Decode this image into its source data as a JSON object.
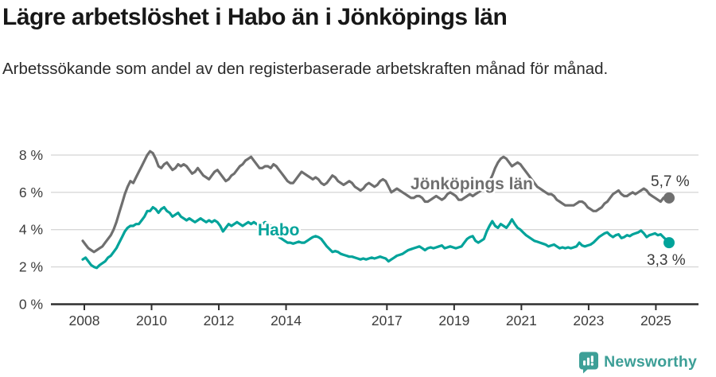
{
  "header": {
    "title": "Lägre arbetslöshet i Habo än i Jönköpings län",
    "subtitle": "Arbetssökande som andel av den registerbaserade arbetskraften månad för månad."
  },
  "chart_data": {
    "type": "line",
    "title": "Lägre arbetslöshet i Habo än i Jönköpings län",
    "subtitle": "Arbetssökande som andel av den registerbaserade arbetskraften månad för månad.",
    "frequency": "monthly",
    "x_range": [
      "2008-01",
      "2025-06"
    ],
    "y_unit": "%",
    "ylim": [
      0,
      8.6
    ],
    "grid": "horizontal",
    "legend": "inline-labels",
    "y_ticks": [
      "0 %",
      "2 %",
      "4 %",
      "6 %",
      "8 %"
    ],
    "x_ticks": [
      "2008",
      "2010",
      "2012",
      "2014",
      "2017",
      "2019",
      "2021",
      "2023",
      "2025"
    ],
    "series": [
      {
        "name": "Jönköpings län",
        "color": "#6f6f6f",
        "end_label": "5,7 %",
        "end_value": 5.7,
        "values": [
          3.4,
          3.2,
          3.0,
          2.9,
          2.8,
          2.9,
          3.0,
          3.1,
          3.3,
          3.5,
          3.7,
          4.0,
          4.4,
          4.9,
          5.4,
          5.9,
          6.3,
          6.6,
          6.5,
          6.8,
          7.1,
          7.4,
          7.7,
          8.0,
          8.2,
          8.1,
          7.8,
          7.4,
          7.3,
          7.5,
          7.6,
          7.4,
          7.2,
          7.3,
          7.5,
          7.4,
          7.5,
          7.4,
          7.2,
          7.0,
          7.1,
          7.3,
          7.1,
          6.9,
          6.8,
          6.7,
          6.9,
          7.1,
          7.2,
          7.0,
          6.8,
          6.6,
          6.7,
          6.9,
          7.0,
          7.2,
          7.4,
          7.5,
          7.7,
          7.8,
          7.9,
          7.7,
          7.5,
          7.3,
          7.3,
          7.4,
          7.4,
          7.3,
          7.5,
          7.4,
          7.2,
          7.0,
          6.8,
          6.6,
          6.5,
          6.5,
          6.7,
          6.9,
          7.1,
          7.0,
          6.9,
          6.8,
          6.7,
          6.8,
          6.7,
          6.5,
          6.4,
          6.5,
          6.7,
          6.9,
          6.8,
          6.6,
          6.5,
          6.4,
          6.5,
          6.6,
          6.5,
          6.3,
          6.2,
          6.1,
          6.2,
          6.4,
          6.5,
          6.4,
          6.3,
          6.4,
          6.6,
          6.7,
          6.6,
          6.3,
          6.0,
          6.1,
          6.2,
          6.1,
          6.0,
          5.9,
          5.8,
          5.7,
          5.7,
          5.8,
          5.8,
          5.7,
          5.5,
          5.5,
          5.6,
          5.7,
          5.8,
          5.7,
          5.6,
          5.7,
          5.9,
          6.0,
          5.9,
          5.8,
          5.6,
          5.6,
          5.7,
          5.8,
          5.9,
          5.8,
          5.9,
          6.0,
          6.1,
          6.3,
          6.5,
          6.6,
          6.9,
          7.3,
          7.6,
          7.8,
          7.9,
          7.8,
          7.6,
          7.4,
          7.5,
          7.6,
          7.5,
          7.3,
          7.1,
          6.9,
          6.7,
          6.5,
          6.3,
          6.2,
          6.1,
          6.0,
          5.9,
          5.9,
          5.8,
          5.6,
          5.5,
          5.4,
          5.3,
          5.3,
          5.3,
          5.3,
          5.4,
          5.5,
          5.5,
          5.4,
          5.2,
          5.1,
          5.0,
          5.0,
          5.1,
          5.2,
          5.4,
          5.5,
          5.7,
          5.9,
          6.0,
          6.1,
          5.9,
          5.8,
          5.8,
          5.9,
          6.0,
          5.9,
          6.0,
          6.1,
          6.2,
          6.1,
          5.9,
          5.8,
          5.7,
          5.6,
          5.5,
          5.7,
          5.8,
          5.7
        ]
      },
      {
        "name": "Habo",
        "color": "#00a39a",
        "end_label": "3,3 %",
        "end_value": 3.3,
        "values": [
          2.4,
          2.5,
          2.3,
          2.1,
          2.0,
          1.95,
          2.1,
          2.2,
          2.3,
          2.5,
          2.6,
          2.8,
          3.0,
          3.3,
          3.6,
          3.9,
          4.1,
          4.2,
          4.2,
          4.3,
          4.3,
          4.5,
          4.7,
          5.0,
          5.0,
          5.2,
          5.1,
          4.9,
          5.1,
          5.2,
          5.0,
          4.9,
          4.7,
          4.8,
          4.9,
          4.7,
          4.6,
          4.5,
          4.6,
          4.5,
          4.4,
          4.5,
          4.6,
          4.5,
          4.4,
          4.5,
          4.4,
          4.5,
          4.4,
          4.2,
          3.9,
          4.1,
          4.3,
          4.2,
          4.3,
          4.4,
          4.3,
          4.2,
          4.3,
          4.4,
          4.3,
          4.4,
          4.3,
          4.2,
          4.3,
          4.4,
          4.3,
          4.2,
          4.0,
          3.8,
          3.6,
          3.5,
          3.4,
          3.3,
          3.3,
          3.25,
          3.3,
          3.35,
          3.3,
          3.3,
          3.4,
          3.5,
          3.6,
          3.65,
          3.6,
          3.5,
          3.3,
          3.1,
          2.95,
          2.8,
          2.85,
          2.8,
          2.7,
          2.65,
          2.6,
          2.55,
          2.55,
          2.5,
          2.45,
          2.4,
          2.45,
          2.4,
          2.45,
          2.5,
          2.45,
          2.5,
          2.55,
          2.5,
          2.45,
          2.3,
          2.4,
          2.5,
          2.6,
          2.65,
          2.7,
          2.8,
          2.9,
          2.95,
          3.0,
          3.05,
          3.1,
          3.0,
          2.9,
          3.0,
          3.05,
          3.0,
          3.05,
          3.1,
          3.15,
          3.0,
          3.05,
          3.1,
          3.05,
          3.0,
          3.05,
          3.1,
          3.3,
          3.5,
          3.6,
          3.65,
          3.4,
          3.3,
          3.4,
          3.5,
          3.9,
          4.2,
          4.45,
          4.2,
          4.1,
          4.3,
          4.2,
          4.1,
          4.3,
          4.55,
          4.3,
          4.1,
          4.0,
          3.85,
          3.7,
          3.6,
          3.5,
          3.4,
          3.35,
          3.3,
          3.25,
          3.2,
          3.1,
          3.15,
          3.2,
          3.1,
          3.0,
          3.05,
          3.0,
          3.05,
          3.0,
          3.05,
          3.1,
          3.3,
          3.15,
          3.1,
          3.15,
          3.2,
          3.3,
          3.45,
          3.6,
          3.7,
          3.8,
          3.85,
          3.7,
          3.6,
          3.7,
          3.75,
          3.55,
          3.6,
          3.7,
          3.65,
          3.75,
          3.8,
          3.85,
          3.95,
          3.8,
          3.6,
          3.7,
          3.75,
          3.8,
          3.7,
          3.75,
          3.6,
          3.45,
          3.3
        ]
      }
    ],
    "colors": {
      "grid": "#d8d8d8",
      "axis": "#2f2f2f",
      "tick_text": "#3c3c3c",
      "annotation_text": "#3a3a3a"
    }
  },
  "footer": {
    "brand": "Newsworthy",
    "logo_icon": "newsworthy-pin-barchart-icon",
    "brand_color": "#3d9f97"
  }
}
